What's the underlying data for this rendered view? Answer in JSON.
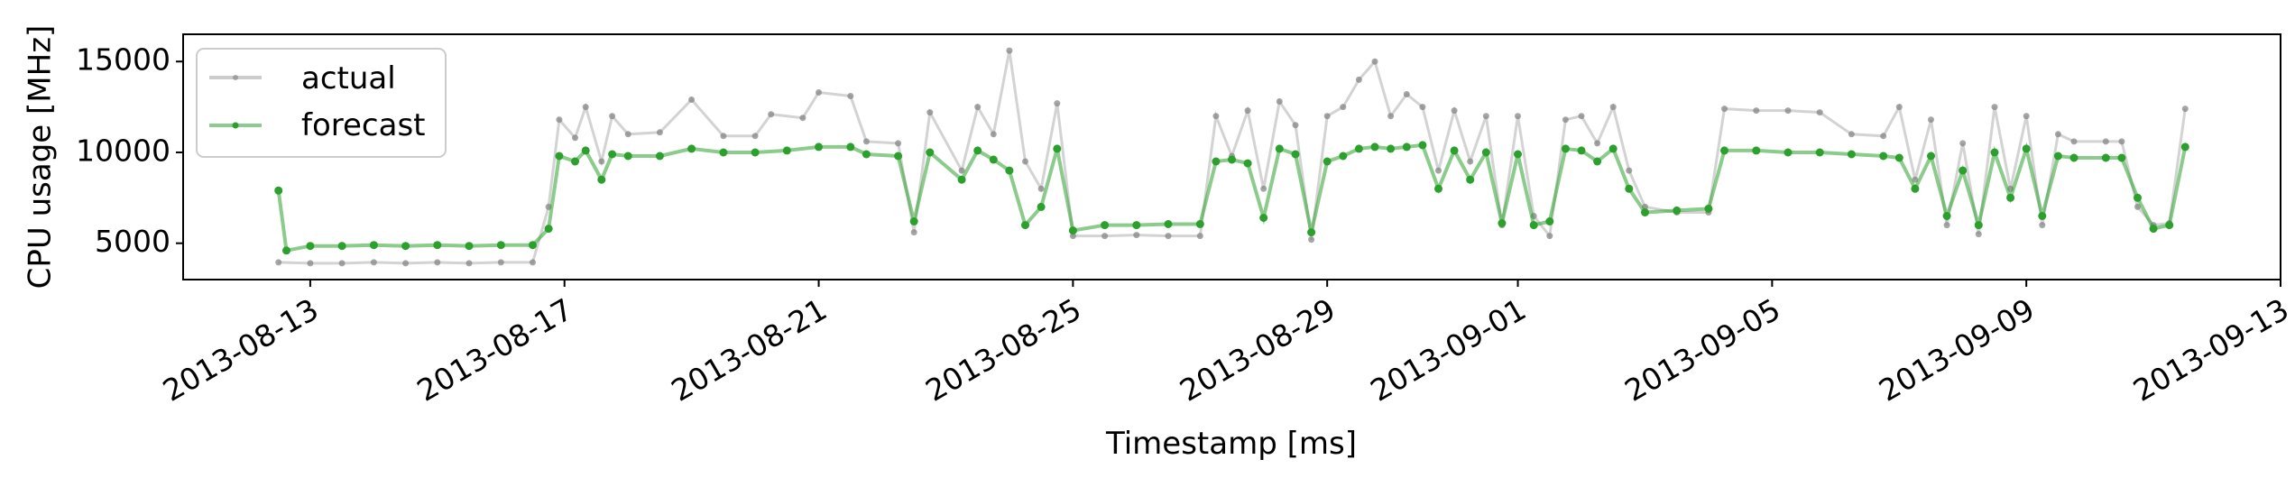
{
  "chart_data": {
    "type": "line",
    "title": "",
    "xlabel": "Timestamp [ms]",
    "ylabel": "CPU usage [MHz]",
    "x_ticks": [
      "2013-08-13",
      "2013-08-17",
      "2013-08-21",
      "2013-08-25",
      "2013-08-29",
      "2013-09-01",
      "2013-09-05",
      "2013-09-09",
      "2013-09-13"
    ],
    "y_ticks": [
      5000,
      10000,
      15000
    ],
    "xlim": [
      "2013-08-11 00:00",
      "2013-09-13 00:00"
    ],
    "ylim": [
      3000,
      16500
    ],
    "grid": false,
    "legend_position": "top-left",
    "colors": {
      "actual": "#808080",
      "forecast": "#2ca02c"
    },
    "series": [
      {
        "name": "actual",
        "points": [
          [
            "2013-08-12 12:00",
            3950
          ],
          [
            "2013-08-13 00:00",
            3900
          ],
          [
            "2013-08-13 12:00",
            3900
          ],
          [
            "2013-08-14 00:00",
            3950
          ],
          [
            "2013-08-14 12:00",
            3900
          ],
          [
            "2013-08-15 00:00",
            3950
          ],
          [
            "2013-08-15 12:00",
            3900
          ],
          [
            "2013-08-16 00:00",
            3950
          ],
          [
            "2013-08-16 12:00",
            3950
          ],
          [
            "2013-08-16 18:00",
            7000
          ],
          [
            "2013-08-16 22:00",
            11800
          ],
          [
            "2013-08-17 04:00",
            10800
          ],
          [
            "2013-08-17 08:00",
            12500
          ],
          [
            "2013-08-17 14:00",
            9500
          ],
          [
            "2013-08-17 18:00",
            12000
          ],
          [
            "2013-08-18 00:00",
            11000
          ],
          [
            "2013-08-18 12:00",
            11100
          ],
          [
            "2013-08-19 00:00",
            12900
          ],
          [
            "2013-08-19 12:00",
            10900
          ],
          [
            "2013-08-20 00:00",
            10900
          ],
          [
            "2013-08-20 06:00",
            12100
          ],
          [
            "2013-08-20 18:00",
            11900
          ],
          [
            "2013-08-21 00:00",
            13300
          ],
          [
            "2013-08-21 12:00",
            13100
          ],
          [
            "2013-08-21 18:00",
            10600
          ],
          [
            "2013-08-22 06:00",
            10500
          ],
          [
            "2013-08-22 12:00",
            5600
          ],
          [
            "2013-08-22 18:00",
            12200
          ],
          [
            "2013-08-23 06:00",
            9000
          ],
          [
            "2013-08-23 12:00",
            12500
          ],
          [
            "2013-08-23 18:00",
            11000
          ],
          [
            "2013-08-24 00:00",
            15600
          ],
          [
            "2013-08-24 06:00",
            9500
          ],
          [
            "2013-08-24 12:00",
            8000
          ],
          [
            "2013-08-24 18:00",
            12700
          ],
          [
            "2013-08-25 00:00",
            5400
          ],
          [
            "2013-08-25 12:00",
            5400
          ],
          [
            "2013-08-26 00:00",
            5450
          ],
          [
            "2013-08-26 12:00",
            5400
          ],
          [
            "2013-08-27 00:00",
            5400
          ],
          [
            "2013-08-27 06:00",
            12000
          ],
          [
            "2013-08-27 12:00",
            9800
          ],
          [
            "2013-08-27 18:00",
            12300
          ],
          [
            "2013-08-28 00:00",
            8000
          ],
          [
            "2013-08-28 06:00",
            12800
          ],
          [
            "2013-08-28 12:00",
            11500
          ],
          [
            "2013-08-28 18:00",
            5200
          ],
          [
            "2013-08-29 00:00",
            12000
          ],
          [
            "2013-08-29 06:00",
            12500
          ],
          [
            "2013-08-29 12:00",
            14000
          ],
          [
            "2013-08-29 18:00",
            15000
          ],
          [
            "2013-08-30 00:00",
            12000
          ],
          [
            "2013-08-30 06:00",
            13200
          ],
          [
            "2013-08-30 12:00",
            12500
          ],
          [
            "2013-08-30 18:00",
            9000
          ],
          [
            "2013-08-31 00:00",
            12300
          ],
          [
            "2013-08-31 06:00",
            9500
          ],
          [
            "2013-08-31 12:00",
            12000
          ],
          [
            "2013-08-31 18:00",
            6000
          ],
          [
            "2013-09-01 00:00",
            12000
          ],
          [
            "2013-09-01 06:00",
            6500
          ],
          [
            "2013-09-01 12:00",
            5400
          ],
          [
            "2013-09-01 18:00",
            11800
          ],
          [
            "2013-09-02 00:00",
            12000
          ],
          [
            "2013-09-02 06:00",
            10500
          ],
          [
            "2013-09-02 12:00",
            12500
          ],
          [
            "2013-09-02 18:00",
            9000
          ],
          [
            "2013-09-03 00:00",
            7000
          ],
          [
            "2013-09-03 12:00",
            6700
          ],
          [
            "2013-09-04 00:00",
            6700
          ],
          [
            "2013-09-04 06:00",
            12400
          ],
          [
            "2013-09-04 18:00",
            12300
          ],
          [
            "2013-09-05 06:00",
            12300
          ],
          [
            "2013-09-05 18:00",
            12200
          ],
          [
            "2013-09-06 06:00",
            11000
          ],
          [
            "2013-09-06 18:00",
            10900
          ],
          [
            "2013-09-07 00:00",
            12500
          ],
          [
            "2013-09-07 06:00",
            8500
          ],
          [
            "2013-09-07 12:00",
            11800
          ],
          [
            "2013-09-07 18:00",
            6000
          ],
          [
            "2013-09-08 00:00",
            10500
          ],
          [
            "2013-09-08 06:00",
            5500
          ],
          [
            "2013-09-08 12:00",
            12500
          ],
          [
            "2013-09-08 18:00",
            8000
          ],
          [
            "2013-09-09 00:00",
            12000
          ],
          [
            "2013-09-09 06:00",
            6000
          ],
          [
            "2013-09-09 12:00",
            11000
          ],
          [
            "2013-09-09 18:00",
            10600
          ],
          [
            "2013-09-10 06:00",
            10600
          ],
          [
            "2013-09-10 12:00",
            10600
          ],
          [
            "2013-09-10 18:00",
            7000
          ],
          [
            "2013-09-11 00:00",
            6000
          ],
          [
            "2013-09-11 06:00",
            6100
          ],
          [
            "2013-09-11 12:00",
            12400
          ]
        ]
      },
      {
        "name": "forecast",
        "points": [
          [
            "2013-08-12 12:00",
            7900
          ],
          [
            "2013-08-12 15:00",
            4600
          ],
          [
            "2013-08-13 00:00",
            4850
          ],
          [
            "2013-08-13 12:00",
            4850
          ],
          [
            "2013-08-14 00:00",
            4900
          ],
          [
            "2013-08-14 12:00",
            4850
          ],
          [
            "2013-08-15 00:00",
            4900
          ],
          [
            "2013-08-15 12:00",
            4850
          ],
          [
            "2013-08-16 00:00",
            4900
          ],
          [
            "2013-08-16 12:00",
            4900
          ],
          [
            "2013-08-16 18:00",
            5800
          ],
          [
            "2013-08-16 22:00",
            9800
          ],
          [
            "2013-08-17 04:00",
            9500
          ],
          [
            "2013-08-17 08:00",
            10100
          ],
          [
            "2013-08-17 14:00",
            8500
          ],
          [
            "2013-08-17 18:00",
            9900
          ],
          [
            "2013-08-18 00:00",
            9800
          ],
          [
            "2013-08-18 12:00",
            9800
          ],
          [
            "2013-08-19 00:00",
            10200
          ],
          [
            "2013-08-19 12:00",
            10000
          ],
          [
            "2013-08-20 00:00",
            10000
          ],
          [
            "2013-08-20 12:00",
            10100
          ],
          [
            "2013-08-21 00:00",
            10300
          ],
          [
            "2013-08-21 12:00",
            10300
          ],
          [
            "2013-08-21 18:00",
            9900
          ],
          [
            "2013-08-22 06:00",
            9800
          ],
          [
            "2013-08-22 12:00",
            6200
          ],
          [
            "2013-08-22 18:00",
            10000
          ],
          [
            "2013-08-23 06:00",
            8500
          ],
          [
            "2013-08-23 12:00",
            10100
          ],
          [
            "2013-08-23 18:00",
            9600
          ],
          [
            "2013-08-24 00:00",
            9000
          ],
          [
            "2013-08-24 06:00",
            6000
          ],
          [
            "2013-08-24 12:00",
            7000
          ],
          [
            "2013-08-24 18:00",
            10200
          ],
          [
            "2013-08-25 00:00",
            5700
          ],
          [
            "2013-08-25 12:00",
            6000
          ],
          [
            "2013-08-26 00:00",
            6000
          ],
          [
            "2013-08-26 12:00",
            6050
          ],
          [
            "2013-08-27 00:00",
            6050
          ],
          [
            "2013-08-27 06:00",
            9500
          ],
          [
            "2013-08-27 12:00",
            9600
          ],
          [
            "2013-08-27 18:00",
            9400
          ],
          [
            "2013-08-28 00:00",
            6400
          ],
          [
            "2013-08-28 06:00",
            10200
          ],
          [
            "2013-08-28 12:00",
            9900
          ],
          [
            "2013-08-28 18:00",
            5600
          ],
          [
            "2013-08-29 00:00",
            9500
          ],
          [
            "2013-08-29 06:00",
            9800
          ],
          [
            "2013-08-29 12:00",
            10200
          ],
          [
            "2013-08-29 18:00",
            10300
          ],
          [
            "2013-08-30 00:00",
            10200
          ],
          [
            "2013-08-30 06:00",
            10300
          ],
          [
            "2013-08-30 12:00",
            10400
          ],
          [
            "2013-08-30 18:00",
            8000
          ],
          [
            "2013-08-31 00:00",
            10100
          ],
          [
            "2013-08-31 06:00",
            8500
          ],
          [
            "2013-08-31 12:00",
            10000
          ],
          [
            "2013-08-31 18:00",
            6100
          ],
          [
            "2013-09-01 00:00",
            9900
          ],
          [
            "2013-09-01 06:00",
            6000
          ],
          [
            "2013-09-01 12:00",
            6200
          ],
          [
            "2013-09-01 18:00",
            10200
          ],
          [
            "2013-09-02 00:00",
            10100
          ],
          [
            "2013-09-02 06:00",
            9500
          ],
          [
            "2013-09-02 12:00",
            10200
          ],
          [
            "2013-09-02 18:00",
            8000
          ],
          [
            "2013-09-03 00:00",
            6700
          ],
          [
            "2013-09-03 12:00",
            6800
          ],
          [
            "2013-09-04 00:00",
            6900
          ],
          [
            "2013-09-04 06:00",
            10100
          ],
          [
            "2013-09-04 18:00",
            10100
          ],
          [
            "2013-09-05 06:00",
            10000
          ],
          [
            "2013-09-05 18:00",
            10000
          ],
          [
            "2013-09-06 06:00",
            9900
          ],
          [
            "2013-09-06 18:00",
            9800
          ],
          [
            "2013-09-07 00:00",
            9700
          ],
          [
            "2013-09-07 06:00",
            8000
          ],
          [
            "2013-09-07 12:00",
            9800
          ],
          [
            "2013-09-07 18:00",
            6500
          ],
          [
            "2013-09-08 00:00",
            9000
          ],
          [
            "2013-09-08 06:00",
            6000
          ],
          [
            "2013-09-08 12:00",
            10000
          ],
          [
            "2013-09-08 18:00",
            7500
          ],
          [
            "2013-09-09 00:00",
            10200
          ],
          [
            "2013-09-09 06:00",
            6500
          ],
          [
            "2013-09-09 12:00",
            9800
          ],
          [
            "2013-09-09 18:00",
            9700
          ],
          [
            "2013-09-10 06:00",
            9700
          ],
          [
            "2013-09-10 12:00",
            9700
          ],
          [
            "2013-09-10 18:00",
            7500
          ],
          [
            "2013-09-11 00:00",
            5800
          ],
          [
            "2013-09-11 06:00",
            6000
          ],
          [
            "2013-09-11 12:00",
            10300
          ]
        ]
      }
    ]
  }
}
